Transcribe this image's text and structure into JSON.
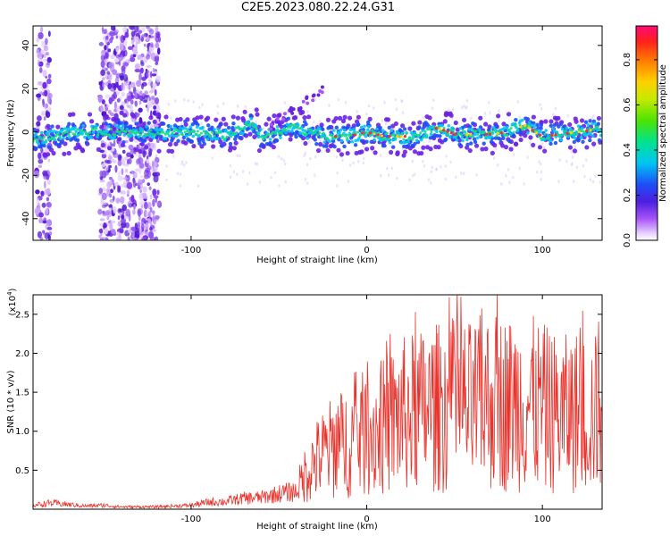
{
  "figure": {
    "title": "C2E5.2023.080.22.24.G31"
  },
  "chart_data": [
    {
      "type": "heatmap",
      "title": "C2E5.2023.080.22.24.G31",
      "xlabel": "Height of straight line (km)",
      "ylabel": "Frequency (Hz)",
      "xlim": [
        -190,
        134
      ],
      "ylim": [
        -50,
        49
      ],
      "xticks": [
        -100,
        0,
        100
      ],
      "xtick_labels": [
        "-100",
        "0",
        "100"
      ],
      "yticks": [
        -40,
        -20,
        0,
        20,
        40
      ],
      "ytick_labels": [
        "-40",
        "-20",
        "0",
        "20",
        "40"
      ],
      "grid": false,
      "colorbar": {
        "label": "Normalized spectral amplitude",
        "range": [
          0,
          0.95
        ],
        "ticks": [
          0.0,
          0.2,
          0.4,
          0.6,
          0.8
        ],
        "tick_labels": [
          "0.0",
          "0.2",
          "0.4",
          "0.6",
          "0.8"
        ]
      },
      "ridge": {
        "description": "dominant frequency band (peak frequency vs height)",
        "x": [
          -188,
          -175,
          -165,
          -155,
          -140,
          -125,
          -120,
          -110,
          -100,
          -90,
          -80,
          -70,
          -65,
          -60,
          -55,
          -50,
          -45,
          -40,
          -35,
          -30,
          -25,
          -20,
          -10,
          0,
          10,
          20,
          30,
          40,
          50,
          60,
          70,
          80,
          90,
          100,
          110,
          120,
          130
        ],
        "y": [
          -3,
          -2,
          0,
          0,
          0,
          0,
          0,
          0,
          0,
          -1,
          -2,
          2,
          4,
          -2,
          -1,
          0,
          2,
          2,
          0,
          0,
          -2,
          -2,
          -2,
          0,
          -2,
          -2,
          -2,
          2,
          -1,
          -1,
          -1,
          0,
          3,
          -2,
          -1,
          0,
          1
        ]
      },
      "scatter_bands": [
        {
          "x": [
            -188,
            -180
          ],
          "y": [
            -50,
            49
          ]
        },
        {
          "x": [
            -152,
            -118
          ],
          "y": [
            -50,
            49
          ]
        }
      ]
    },
    {
      "type": "line",
      "xlabel": "Height of straight line (km)",
      "ylabel": "SNR (10 * v/v)",
      "y_multiplier": "(x10",
      "y_multiplier_exponent": "4",
      "y_multiplier_close": ")",
      "xlim": [
        -190,
        134
      ],
      "ylim": [
        0,
        27500
      ],
      "xticks": [
        -100,
        0,
        100
      ],
      "xtick_labels": [
        "-100",
        "0",
        "100"
      ],
      "yticks": [
        5000,
        10000,
        15000,
        20000,
        25000
      ],
      "ytick_labels": [
        "0.5",
        "1.0",
        "1.5",
        "2.0",
        "2.5"
      ],
      "grid": false,
      "color": "#e8322b",
      "series": [
        {
          "x": [
            -190,
            -180,
            -170,
            -160,
            -150,
            -140,
            -130,
            -120,
            -110,
            -100,
            -90,
            -80,
            -70,
            -60,
            -50,
            -40,
            -35,
            -30,
            -25,
            -20,
            -10,
            0,
            10,
            20,
            30,
            40,
            50,
            60,
            70,
            80,
            90,
            100,
            110,
            120,
            130,
            134
          ],
          "y": [
            500,
            800,
            600,
            400,
            500,
            300,
            300,
            300,
            400,
            500,
            900,
            1000,
            1400,
            1500,
            2000,
            2300,
            4500,
            6000,
            7000,
            7800,
            8700,
            9800,
            10500,
            12000,
            12500,
            13000,
            13500,
            13000,
            14000,
            13500,
            13800,
            13000,
            12000,
            12500,
            12000,
            16000
          ]
        }
      ]
    }
  ]
}
